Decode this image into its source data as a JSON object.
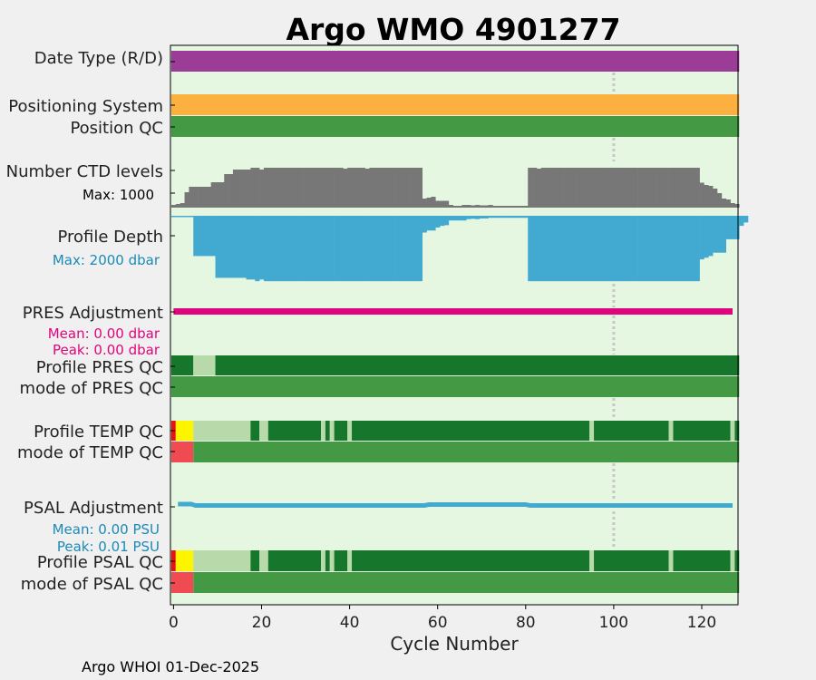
{
  "chart_data": {
    "type": "timeline",
    "title": "Argo WMO 4901277",
    "xlabel": "Cycle Number",
    "xlim": [
      -0.5,
      128.5
    ],
    "xticks": [
      0,
      20,
      40,
      60,
      80,
      100,
      120
    ],
    "reference_cycle": 100,
    "footer": "Argo WHOI 01-Dec-2025",
    "colors": {
      "plot_bg": "#e5f7e0",
      "title": "#1b8ab8",
      "date_type": "#9b3d97",
      "positioning": "#fbb040",
      "qc_good": "#449944",
      "qc_dark": "#16762c",
      "qc_light": "#b8d9aa",
      "qc_yellow": "#fdf400",
      "qc_red": "#ee1111",
      "qc_pink": "#f04a52",
      "ctd": "#777777",
      "depth": "#42aad0",
      "pres_adj": "#e0057d",
      "psal_adj": "#42aad0",
      "refline": "#c8c8c8"
    },
    "labels": {
      "date_type": "Date Type (R/D)",
      "positioning": "Positioning System",
      "position_qc": "Position QC",
      "ctd": "Number CTD levels",
      "ctd_max": "Max: 1000",
      "depth": "Profile Depth",
      "depth_max": "Max: 2000 dbar",
      "pres_adj": "PRES Adjustment",
      "pres_mean": "Mean: 0.00 dbar",
      "pres_peak": "Peak: 0.00 dbar",
      "pres_qc": "Profile PRES QC",
      "pres_mode": "mode of PRES QC",
      "temp_qc": "Profile TEMP QC",
      "temp_mode": "mode of TEMP QC",
      "psal_adj": "PSAL Adjustment",
      "psal_mean": "Mean: 0.00 PSU",
      "psal_peak": "Peak: 0.01 PSU",
      "psal_qc": "Profile PSAL QC",
      "psal_mode": "mode of PSAL QC"
    },
    "ctd_levels_max": 1000,
    "ctd_levels": [
      60,
      80,
      100,
      340,
      460,
      460,
      460,
      460,
      460,
      560,
      560,
      560,
      740,
      740,
      840,
      840,
      840,
      840,
      880,
      880,
      840,
      880,
      880,
      880,
      880,
      880,
      880,
      880,
      880,
      880,
      880,
      880,
      880,
      880,
      880,
      880,
      880,
      880,
      880,
      860,
      880,
      880,
      880,
      880,
      860,
      880,
      880,
      880,
      880,
      880,
      880,
      880,
      880,
      880,
      880,
      880,
      880,
      200,
      220,
      240,
      150,
      150,
      150,
      60,
      40,
      40,
      60,
      60,
      50,
      60,
      50,
      50,
      60,
      40,
      40,
      40,
      40,
      40,
      40,
      40,
      40,
      880,
      880,
      860,
      880,
      880,
      880,
      880,
      880,
      880,
      880,
      880,
      880,
      880,
      880,
      880,
      880,
      880,
      880,
      880,
      880,
      880,
      880,
      880,
      880,
      880,
      880,
      880,
      880,
      880,
      880,
      880,
      880,
      880,
      880,
      880,
      880,
      880,
      880,
      880,
      550,
      500,
      480,
      420,
      320,
      200,
      180,
      100,
      80
    ],
    "profile_depth_max": 2000,
    "profile_depth": [
      40,
      40,
      40,
      40,
      40,
      1200,
      1200,
      1200,
      1200,
      1200,
      1850,
      1850,
      1850,
      1850,
      1850,
      1850,
      1850,
      1900,
      1900,
      1950,
      1900,
      1950,
      1950,
      1950,
      1950,
      1950,
      1950,
      1950,
      1950,
      1950,
      1950,
      1950,
      1950,
      1950,
      1950,
      1950,
      1950,
      1950,
      1950,
      1950,
      1950,
      1950,
      1950,
      1950,
      1950,
      1950,
      1950,
      1950,
      1950,
      1950,
      1950,
      1950,
      1950,
      1950,
      1950,
      1950,
      1950,
      500,
      440,
      440,
      350,
      300,
      280,
      140,
      140,
      140,
      140,
      100,
      90,
      100,
      80,
      80,
      60,
      60,
      60,
      60,
      60,
      60,
      60,
      60,
      60,
      1950,
      1950,
      1950,
      1950,
      1950,
      1950,
      1950,
      1950,
      1950,
      1950,
      1950,
      1950,
      1950,
      1950,
      1950,
      1950,
      1950,
      1950,
      1950,
      1950,
      1950,
      1950,
      1950,
      1950,
      1950,
      1950,
      1950,
      1950,
      1950,
      1950,
      1950,
      1950,
      1950,
      1950,
      1950,
      1950,
      1950,
      1950,
      1950,
      1300,
      1250,
      1200,
      1100,
      1100,
      1100,
      700,
      700,
      700,
      300,
      200
    ],
    "pres_qc_segments": [
      {
        "from": 0,
        "to": 4,
        "value": "dark"
      },
      {
        "from": 5,
        "to": 9,
        "value": "light"
      },
      {
        "from": 10,
        "to": 128,
        "value": "dark"
      }
    ],
    "pres_mode_segments": [
      {
        "from": 0,
        "to": 128,
        "value": "good"
      }
    ],
    "temp_qc_segments": [
      {
        "from": 0,
        "to": 0,
        "value": "red"
      },
      {
        "from": 1,
        "to": 4,
        "value": "yellow"
      },
      {
        "from": 5,
        "to": 17,
        "value": "light"
      },
      {
        "from": 18,
        "to": 19,
        "value": "dark"
      },
      {
        "from": 20,
        "to": 21,
        "value": "light"
      },
      {
        "from": 22,
        "to": 33,
        "value": "dark"
      },
      {
        "from": 34,
        "to": 34,
        "value": "light"
      },
      {
        "from": 35,
        "to": 35,
        "value": "dark"
      },
      {
        "from": 36,
        "to": 36,
        "value": "light"
      },
      {
        "from": 37,
        "to": 39,
        "value": "dark"
      },
      {
        "from": 40,
        "to": 40,
        "value": "light"
      },
      {
        "from": 41,
        "to": 94,
        "value": "dark"
      },
      {
        "from": 95,
        "to": 95,
        "value": "light"
      },
      {
        "from": 96,
        "to": 112,
        "value": "dark"
      },
      {
        "from": 113,
        "to": 113,
        "value": "light"
      },
      {
        "from": 114,
        "to": 126,
        "value": "dark"
      },
      {
        "from": 127,
        "to": 127,
        "value": "light"
      },
      {
        "from": 128,
        "to": 128,
        "value": "dark"
      }
    ],
    "temp_mode_segments": [
      {
        "from": 0,
        "to": 4,
        "value": "pink"
      },
      {
        "from": 5,
        "to": 128,
        "value": "good"
      }
    ],
    "psal_qc_segments": [
      {
        "from": 0,
        "to": 0,
        "value": "red"
      },
      {
        "from": 1,
        "to": 4,
        "value": "yellow"
      },
      {
        "from": 5,
        "to": 17,
        "value": "light"
      },
      {
        "from": 18,
        "to": 19,
        "value": "dark"
      },
      {
        "from": 20,
        "to": 21,
        "value": "light"
      },
      {
        "from": 22,
        "to": 33,
        "value": "dark"
      },
      {
        "from": 34,
        "to": 34,
        "value": "light"
      },
      {
        "from": 35,
        "to": 35,
        "value": "dark"
      },
      {
        "from": 36,
        "to": 36,
        "value": "light"
      },
      {
        "from": 37,
        "to": 39,
        "value": "dark"
      },
      {
        "from": 40,
        "to": 40,
        "value": "light"
      },
      {
        "from": 41,
        "to": 94,
        "value": "dark"
      },
      {
        "from": 95,
        "to": 95,
        "value": "light"
      },
      {
        "from": 96,
        "to": 112,
        "value": "dark"
      },
      {
        "from": 113,
        "to": 113,
        "value": "light"
      },
      {
        "from": 114,
        "to": 126,
        "value": "dark"
      },
      {
        "from": 127,
        "to": 127,
        "value": "light"
      },
      {
        "from": 128,
        "to": 128,
        "value": "dark"
      }
    ],
    "psal_mode_segments": [
      {
        "from": 0,
        "to": 4,
        "value": "pink"
      },
      {
        "from": 5,
        "to": 128,
        "value": "good"
      }
    ]
  }
}
